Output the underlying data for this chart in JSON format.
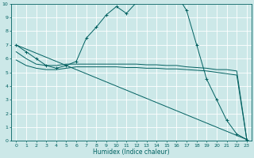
{
  "background_color": "#cce8e8",
  "grid_color": "#ffffff",
  "line_color": "#006060",
  "xlabel": "Humidex (Indice chaleur)",
  "xlim": [
    -0.5,
    23.5
  ],
  "ylim": [
    0,
    10
  ],
  "xticks": [
    0,
    1,
    2,
    3,
    4,
    5,
    6,
    7,
    8,
    9,
    10,
    11,
    12,
    13,
    14,
    15,
    16,
    17,
    18,
    19,
    20,
    21,
    22,
    23
  ],
  "yticks": [
    0,
    1,
    2,
    3,
    4,
    5,
    6,
    7,
    8,
    9,
    10
  ],
  "series": [
    {
      "x": [
        0,
        1,
        2,
        3,
        4,
        5,
        6,
        7,
        8,
        9,
        10,
        11,
        12,
        13,
        14,
        15,
        16,
        17,
        18,
        19,
        20,
        21,
        22,
        23
      ],
      "y": [
        7.0,
        6.5,
        6.0,
        5.5,
        5.3,
        5.5,
        5.8,
        7.5,
        8.3,
        9.2,
        9.8,
        9.3,
        10.1,
        10.4,
        10.6,
        10.5,
        10.7,
        9.5,
        7.0,
        4.5,
        3.0,
        1.5,
        0.5,
        0.1
      ],
      "with_markers": true
    },
    {
      "x": [
        0,
        1,
        2,
        3,
        4,
        5,
        6,
        7,
        8,
        9,
        10,
        11,
        12,
        13,
        14,
        15,
        16,
        17,
        18,
        19,
        20,
        21,
        22,
        23
      ],
      "y": [
        6.5,
        6.0,
        5.6,
        5.5,
        5.5,
        5.6,
        5.6,
        5.6,
        5.6,
        5.6,
        5.6,
        5.6,
        5.6,
        5.55,
        5.55,
        5.5,
        5.5,
        5.4,
        5.35,
        5.3,
        5.2,
        5.2,
        5.1,
        0.1
      ],
      "with_markers": false
    },
    {
      "x": [
        0,
        1,
        2,
        3,
        4,
        5,
        6,
        7,
        8,
        9,
        10,
        11,
        12,
        13,
        14,
        15,
        16,
        17,
        18,
        19,
        20,
        21,
        22,
        23
      ],
      "y": [
        5.9,
        5.5,
        5.3,
        5.2,
        5.2,
        5.3,
        5.4,
        5.4,
        5.4,
        5.4,
        5.4,
        5.35,
        5.35,
        5.3,
        5.3,
        5.25,
        5.25,
        5.2,
        5.15,
        5.1,
        5.0,
        4.9,
        4.8,
        0.1
      ],
      "with_markers": false
    },
    {
      "x": [
        0,
        23
      ],
      "y": [
        7.0,
        0.1
      ],
      "with_markers": false
    }
  ]
}
